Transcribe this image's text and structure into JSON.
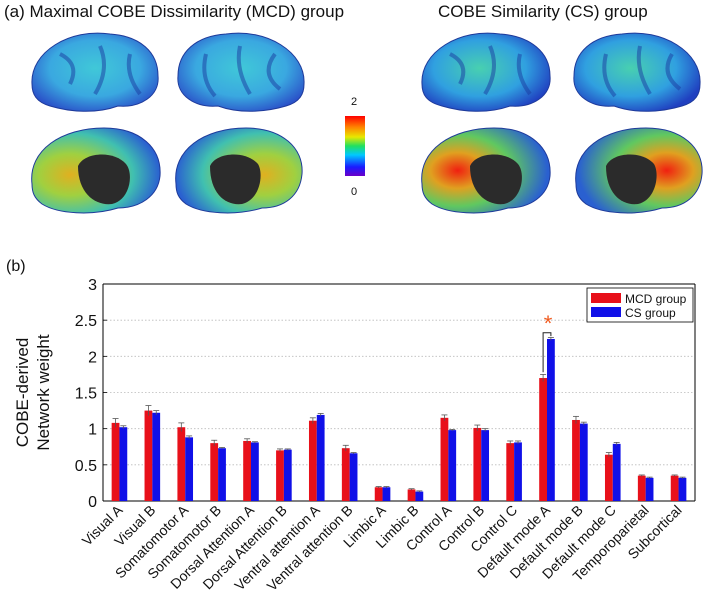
{
  "panel_a": {
    "label": "(a)",
    "left_title": "Maximal COBE Dissimilarity (MCD) group",
    "right_title": "COBE Similarity (CS) group",
    "colorbar_max": "2",
    "colorbar_min": "0"
  },
  "panel_b": {
    "label": "(b)"
  },
  "colors": {
    "mcd": "#e8101a",
    "cs": "#1010e8"
  },
  "chart_data": {
    "type": "bar",
    "categories": [
      "Visual A",
      "Visual B",
      "Somatomotor A",
      "Somatomotor B",
      "Dorsal Attention A",
      "Dorsal Attention B",
      "Ventral attention A",
      "Ventral attention B",
      "Limbic A",
      "Limbic B",
      "Control A",
      "Control B",
      "Control C",
      "Default mode A",
      "Default mode B",
      "Default mode C",
      "Temporoparietal",
      "Subcortical"
    ],
    "series": [
      {
        "name": "MCD group",
        "color": "#e8101a",
        "values": [
          1.08,
          1.25,
          1.02,
          0.8,
          0.83,
          0.7,
          1.11,
          0.73,
          0.19,
          0.16,
          1.15,
          1.01,
          0.8,
          1.7,
          1.12,
          0.64,
          0.35,
          0.35
        ],
        "errors": [
          0.06,
          0.07,
          0.06,
          0.04,
          0.03,
          0.02,
          0.04,
          0.04,
          0.01,
          0.01,
          0.04,
          0.04,
          0.03,
          0.05,
          0.05,
          0.03,
          0.01,
          0.01
        ]
      },
      {
        "name": "CS group",
        "color": "#1010e8",
        "values": [
          1.02,
          1.22,
          0.88,
          0.73,
          0.81,
          0.71,
          1.19,
          0.66,
          0.19,
          0.13,
          0.98,
          0.98,
          0.81,
          2.24,
          1.07,
          0.79,
          0.32,
          0.32
        ],
        "errors": [
          0.02,
          0.03,
          0.02,
          0.01,
          0.01,
          0.01,
          0.02,
          0.01,
          0.01,
          0.01,
          0.01,
          0.02,
          0.02,
          0.02,
          0.02,
          0.02,
          0.01,
          0.01
        ]
      }
    ],
    "ylabel": [
      "COBE-derived",
      "Network weight"
    ],
    "ylim": [
      0,
      3
    ],
    "yticks": [
      0,
      0.5,
      1,
      1.5,
      2,
      2.5,
      3
    ],
    "ytick_labels": [
      "0",
      "0.5",
      "1",
      "1.5",
      "2",
      "2.5",
      "3"
    ],
    "grid": "horizontal dotted",
    "legend": "top-right",
    "annotation": {
      "text": "*",
      "category": "Default mode A",
      "color": "#f05a1e"
    }
  }
}
